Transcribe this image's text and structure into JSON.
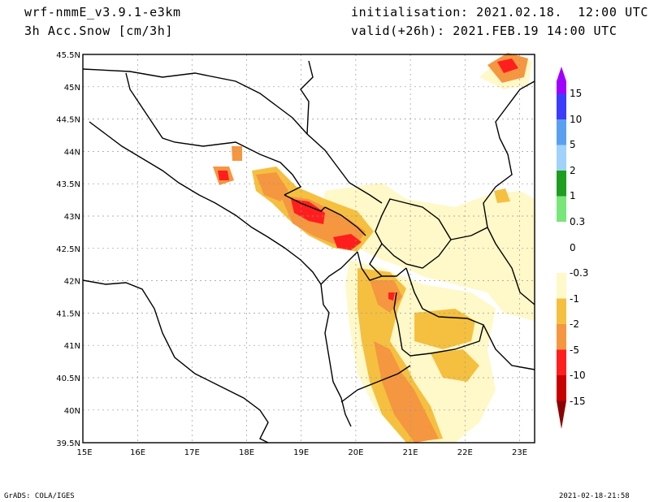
{
  "header": {
    "model": "wrf-nmmE_v3.9.1-e3km",
    "field": "3h Acc.Snow [cm/3h]",
    "init": "initialisation: 2021.02.18.  12:00 UTC",
    "valid": "valid(+26h): 2021.FEB.19 14:00 UTC"
  },
  "footer": {
    "left": "GrADS: COLA/IGES",
    "right": "2021-02-18-21:58"
  },
  "map": {
    "lon_labels": [
      "15E",
      "16E",
      "17E",
      "18E",
      "19E",
      "20E",
      "21E",
      "22E",
      "23E"
    ],
    "lat_labels": [
      "45.5N",
      "45N",
      "44.5N",
      "44N",
      "43.5N",
      "43N",
      "42.5N",
      "42N",
      "41.5N",
      "41N",
      "40.5N",
      "40N",
      "39.5N"
    ]
  },
  "colorbar": {
    "levels": [
      "15",
      "10",
      "5",
      "2",
      "1",
      "0.3",
      "0",
      "-0.3",
      "-1",
      "-2",
      "-5",
      "-10",
      "-15"
    ],
    "colors": [
      "#a000ff",
      "#3c3cff",
      "#5aa0f0",
      "#a0d2fa",
      "#1e9e1e",
      "#78e678",
      "#ffffff",
      "#fff8c8",
      "#f5c040",
      "#f59640",
      "#ff1e1e",
      "#c80000",
      "#8c0000"
    ]
  }
}
